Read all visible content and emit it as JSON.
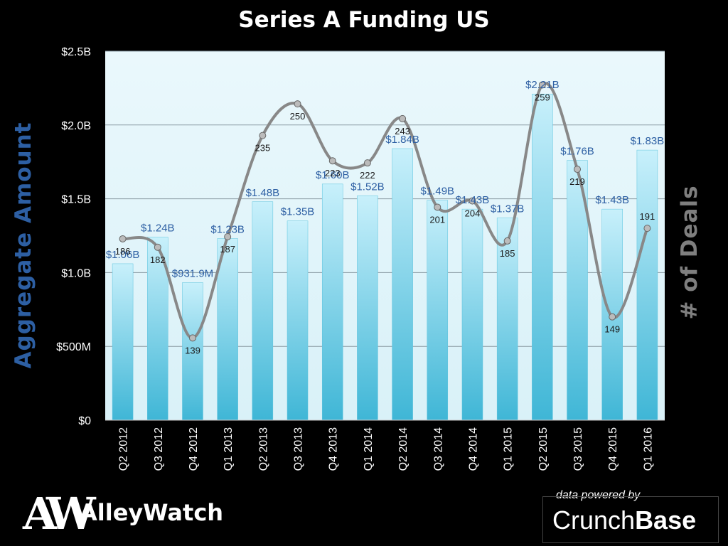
{
  "title": "Series A  Funding US",
  "left_axis_label": "Aggregate  Amount",
  "right_axis_label": "# of Deals",
  "logo_mark": "AW",
  "logo_text": "AlleyWatch",
  "powered_by": "data powered by",
  "crunchbase_part1": "Crunch",
  "crunchbase_part2": "Base",
  "colors": {
    "bar_top": "#c8f0fb",
    "bar_bottom": "#3fb6d6",
    "plot_bg": "#d9f1f8",
    "line": "#888888",
    "left_axis_label": "#2d5fa3",
    "right_axis_label": "#7f7f7f",
    "bar_label": "#2d5fa3"
  },
  "chart_data": {
    "type": "bar",
    "categories": [
      "Q2 2012",
      "Q3 2012",
      "Q4 2012",
      "Q1 2013",
      "Q2 2013",
      "Q3 2013",
      "Q4 2013",
      "Q1 2014",
      "Q2 2014",
      "Q3 2014",
      "Q4 2014",
      "Q1 2015",
      "Q2 2015",
      "Q3 2015",
      "Q4 2015",
      "Q1 2016"
    ],
    "series": [
      {
        "values": [
          1.06,
          1.24,
          0.9319,
          1.23,
          1.48,
          1.35,
          1.6,
          1.52,
          1.84,
          1.49,
          1.43,
          1.37,
          2.21,
          1.76,
          1.43,
          1.83
        ],
        "labels": [
          "$1.06B",
          "$1.24B",
          "$931.9M",
          "$1.23B",
          "$1.48B",
          "$1.35B",
          "$1.60B",
          "$1.52B",
          "$1.84B",
          "$1.49B",
          "$1.43B",
          "$1.37B",
          "$2.21B",
          "$1.76B",
          "$1.43B",
          "$1.83B"
        ],
        "unit": "billions USD"
      },
      {
        "type": "line",
        "values": [
          186,
          182,
          139,
          187,
          235,
          250,
          223,
          222,
          243,
          201,
          204,
          185,
          259,
          219,
          149,
          191
        ]
      }
    ],
    "y_ticks": [
      "$0",
      "$500M",
      "$1.0B",
      "$1.5B",
      "$2.0B",
      "$2.5B"
    ],
    "ylim": [
      0,
      2.5
    ],
    "deals_ylim": [
      100,
      275
    ],
    "grid": true,
    "legend": "none"
  }
}
